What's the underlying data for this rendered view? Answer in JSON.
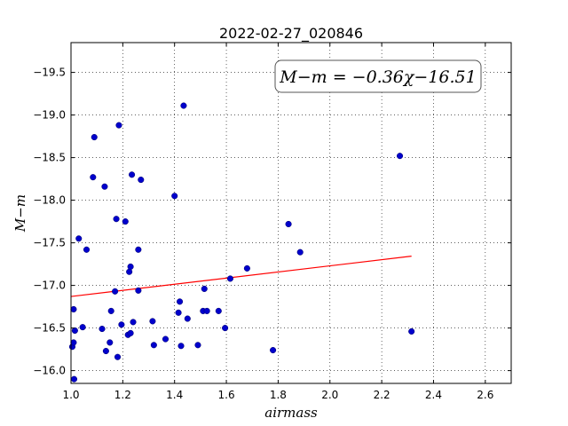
{
  "chart_data": {
    "type": "scatter",
    "title": "2022-02-27_020846",
    "xlabel": "airmass",
    "ylabel": "M−m",
    "xlim": [
      1.0,
      2.7
    ],
    "ylim": [
      -19.85,
      -15.85
    ],
    "y_inverted": true,
    "grid": true,
    "x_ticks": [
      1.0,
      1.2,
      1.4,
      1.6,
      1.8,
      2.0,
      2.2,
      2.4,
      2.6
    ],
    "x_tick_labels": [
      "1.0",
      "1.2",
      "1.4",
      "1.6",
      "1.8",
      "2.0",
      "2.2",
      "2.4",
      "2.6"
    ],
    "y_ticks": [
      -16.0,
      -16.5,
      -17.0,
      -17.5,
      -18.0,
      -18.5,
      -19.0,
      -19.5
    ],
    "y_tick_labels": [
      "−16.0",
      "−16.5",
      "−17.0",
      "−17.5",
      "−18.0",
      "−18.5",
      "−19.0",
      "−19.5"
    ],
    "annotation": "M−m = −0.36χ−16.51",
    "series": [
      {
        "kind": "points",
        "color": "#0000cc",
        "points": [
          [
            1.005,
            -16.28
          ],
          [
            1.01,
            -16.33
          ],
          [
            1.01,
            -16.72
          ],
          [
            1.015,
            -16.47
          ],
          [
            1.012,
            -15.9
          ],
          [
            1.03,
            -17.55
          ],
          [
            1.045,
            -16.51
          ],
          [
            1.06,
            -17.42
          ],
          [
            1.085,
            -18.27
          ],
          [
            1.09,
            -18.74
          ],
          [
            1.12,
            -16.49
          ],
          [
            1.13,
            -18.16
          ],
          [
            1.135,
            -16.23
          ],
          [
            1.15,
            -16.33
          ],
          [
            1.155,
            -16.7
          ],
          [
            1.17,
            -16.93
          ],
          [
            1.175,
            -17.78
          ],
          [
            1.18,
            -16.16
          ],
          [
            1.185,
            -18.88
          ],
          [
            1.195,
            -16.54
          ],
          [
            1.21,
            -17.75
          ],
          [
            1.22,
            -16.42
          ],
          [
            1.225,
            -17.16
          ],
          [
            1.23,
            -16.44
          ],
          [
            1.23,
            -17.22
          ],
          [
            1.235,
            -18.3
          ],
          [
            1.24,
            -16.57
          ],
          [
            1.26,
            -16.94
          ],
          [
            1.26,
            -17.42
          ],
          [
            1.27,
            -18.24
          ],
          [
            1.315,
            -16.58
          ],
          [
            1.32,
            -16.3
          ],
          [
            1.365,
            -16.37
          ],
          [
            1.4,
            -18.05
          ],
          [
            1.415,
            -16.68
          ],
          [
            1.42,
            -16.81
          ],
          [
            1.425,
            -16.29
          ],
          [
            1.435,
            -19.11
          ],
          [
            1.45,
            -16.61
          ],
          [
            1.49,
            -16.3
          ],
          [
            1.51,
            -16.7
          ],
          [
            1.515,
            -16.96
          ],
          [
            1.525,
            -16.7
          ],
          [
            1.57,
            -16.7
          ],
          [
            1.595,
            -16.5
          ],
          [
            1.615,
            -17.08
          ],
          [
            1.68,
            -17.2
          ],
          [
            1.78,
            -16.24
          ],
          [
            1.84,
            -17.72
          ],
          [
            1.885,
            -17.39
          ],
          [
            2.27,
            -18.52
          ],
          [
            2.315,
            -16.46
          ]
        ]
      },
      {
        "kind": "fit-line",
        "color": "#ff0000",
        "slope": -0.36,
        "intercept": -16.51,
        "x_range": [
          1.0,
          2.315
        ]
      }
    ]
  }
}
